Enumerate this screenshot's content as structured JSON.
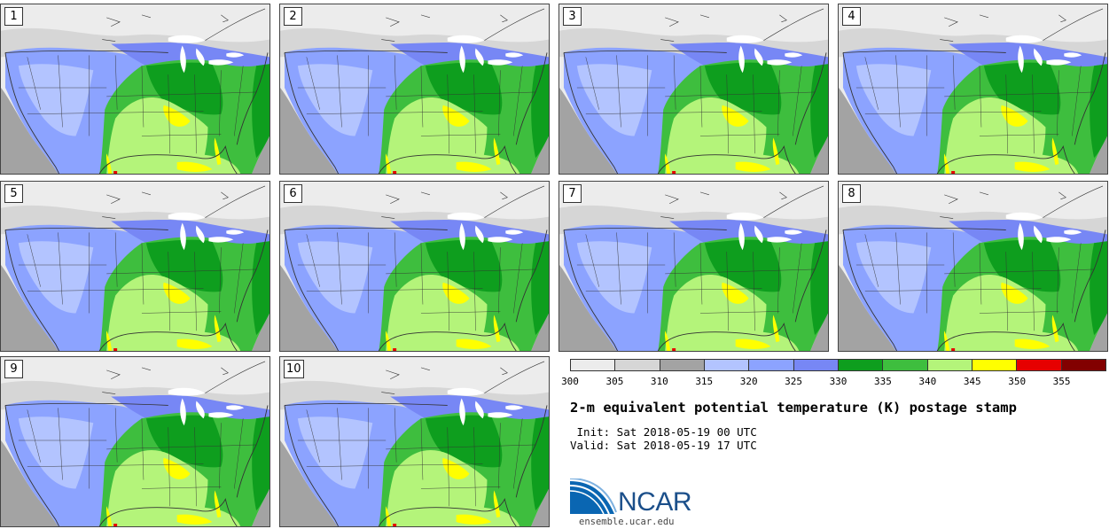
{
  "stamps": [
    "1",
    "2",
    "3",
    "4",
    "5",
    "6",
    "7",
    "8",
    "9",
    "10"
  ],
  "colorbar": {
    "colors": [
      "#ececec",
      "#d6d6d6",
      "#a3a3a3",
      "#b3c4ff",
      "#8ca3ff",
      "#7787f5",
      "#0e9e1e",
      "#3ebe3e",
      "#b4f47a",
      "#ffff00",
      "#e60000",
      "#820000"
    ],
    "ticks": [
      "300",
      "305",
      "310",
      "315",
      "320",
      "325",
      "330",
      "335",
      "340",
      "345",
      "350",
      "355"
    ]
  },
  "title": "2-m equivalent potential temperature (K) postage stamp",
  "init": " Init: Sat 2018-05-19 00 UTC",
  "valid": "Valid: Sat 2018-05-19 17 UTC",
  "logo": {
    "text": "NCAR",
    "site": "ensemble.ucar.edu"
  },
  "fill_colors": {
    "ocean": "#a3a3a3",
    "north_light": "#ececec",
    "north_mid": "#d6d6d6",
    "lakes": "#ffffff",
    "blue_dark": "#7787f5",
    "blue_mid": "#8ca3ff",
    "blue_light": "#b3c4ff",
    "green_dark": "#0e9e1e",
    "green_mid": "#3ebe3e",
    "green_light": "#b4f47a",
    "yellow": "#ffff00",
    "red": "#e60000",
    "lines": "#333333"
  }
}
